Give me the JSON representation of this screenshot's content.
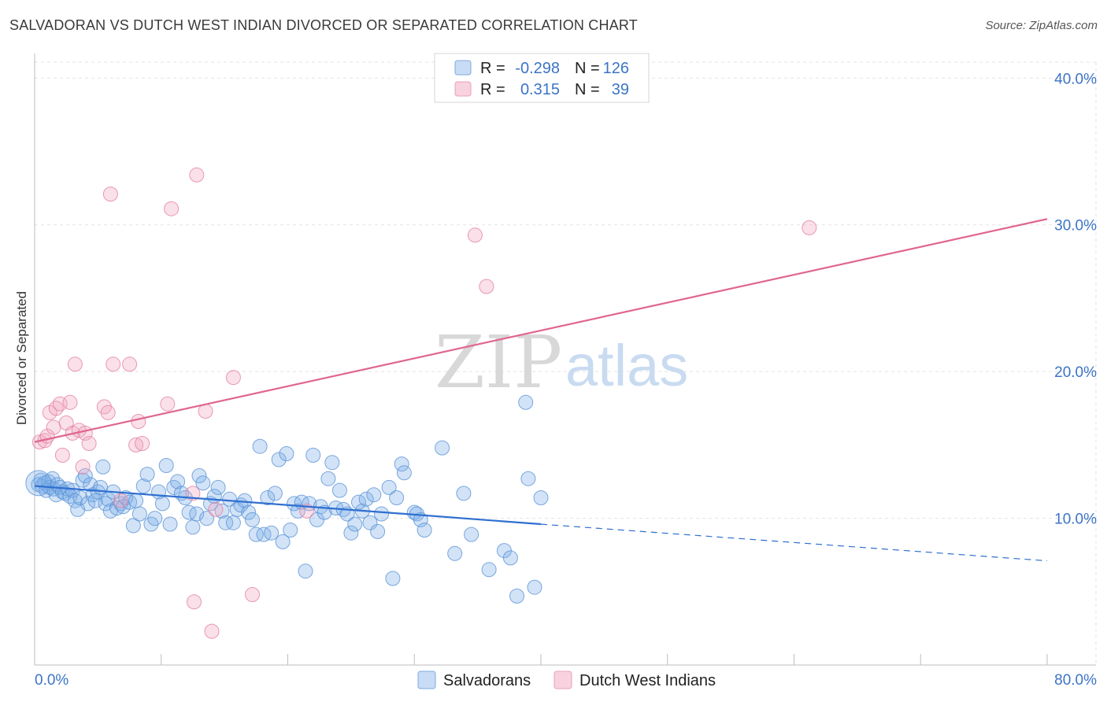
{
  "header": {
    "title": "SALVADORAN VS DUTCH WEST INDIAN DIVORCED OR SEPARATED CORRELATION CHART",
    "source": "Source: ZipAtlas.com"
  },
  "watermark": {
    "zip": "ZIP",
    "atlas": "atlas"
  },
  "stats_legend": {
    "rows": [
      {
        "r_label": "R =",
        "r_value": "-0.298",
        "n_label": "N =",
        "n_value": "126",
        "color": "#7fb0e8"
      },
      {
        "r_label": "R =",
        "r_value": "0.315",
        "n_label": "N =",
        "n_value": "39",
        "color": "#f2a6bf"
      }
    ]
  },
  "chart_data": {
    "type": "scatter",
    "title": "SALVADORAN VS DUTCH WEST INDIAN DIVORCED OR SEPARATED CORRELATION CHART",
    "xlabel": "",
    "ylabel": "Divorced or Separated",
    "xlim": [
      0,
      80
    ],
    "ylim": [
      0,
      42
    ],
    "x_tick_labels": [
      "0.0%",
      "80.0%"
    ],
    "y_ticks": [
      10,
      20,
      30,
      40
    ],
    "y_tick_labels": [
      "10.0%",
      "20.0%",
      "30.0%",
      "40.0%"
    ],
    "grid": true,
    "legend_position": "bottom",
    "series": [
      {
        "name": "Salvadorans",
        "color": "#7fb0e8",
        "stroke": "#5b93d6",
        "r": -0.298,
        "n": 126,
        "trend": {
          "x": [
            0,
            40
          ],
          "y": [
            12.2,
            9.6
          ],
          "dashed_to": [
            80,
            7.1
          ],
          "color": "#2f6fd0"
        },
        "points": [
          [
            0.3,
            12.3
          ],
          [
            0.5,
            12.6
          ],
          [
            0.6,
            12.2
          ],
          [
            0.8,
            12.4
          ],
          [
            0.9,
            11.9
          ],
          [
            1.1,
            12.5
          ],
          [
            1.2,
            12.1
          ],
          [
            1.4,
            12.7
          ],
          [
            1.5,
            12.0
          ],
          [
            1.7,
            11.6
          ],
          [
            1.8,
            12.3
          ],
          [
            2.0,
            12.1
          ],
          [
            2.2,
            11.8
          ],
          [
            2.4,
            11.7
          ],
          [
            2.6,
            12.0
          ],
          [
            2.8,
            11.5
          ],
          [
            3.0,
            11.9
          ],
          [
            3.2,
            11.2
          ],
          [
            3.4,
            10.6
          ],
          [
            3.6,
            11.4
          ],
          [
            3.8,
            12.6
          ],
          [
            4.0,
            12.9
          ],
          [
            4.2,
            11.0
          ],
          [
            4.4,
            12.3
          ],
          [
            4.6,
            11.6
          ],
          [
            4.8,
            11.2
          ],
          [
            5.0,
            11.8
          ],
          [
            5.2,
            12.1
          ],
          [
            5.4,
            13.5
          ],
          [
            5.6,
            11.0
          ],
          [
            5.8,
            11.3
          ],
          [
            6.0,
            10.5
          ],
          [
            6.2,
            11.8
          ],
          [
            6.5,
            10.7
          ],
          [
            6.8,
            11.0
          ],
          [
            7.0,
            10.8
          ],
          [
            7.2,
            11.4
          ],
          [
            7.5,
            11.1
          ],
          [
            7.8,
            9.5
          ],
          [
            8.0,
            11.2
          ],
          [
            8.3,
            10.3
          ],
          [
            8.6,
            12.2
          ],
          [
            8.9,
            13.0
          ],
          [
            9.2,
            9.6
          ],
          [
            9.5,
            10.0
          ],
          [
            9.8,
            11.8
          ],
          [
            10.1,
            11.0
          ],
          [
            10.4,
            13.6
          ],
          [
            10.7,
            9.6
          ],
          [
            11.0,
            12.1
          ],
          [
            11.3,
            12.5
          ],
          [
            11.6,
            11.7
          ],
          [
            11.9,
            11.4
          ],
          [
            12.2,
            10.4
          ],
          [
            12.5,
            9.4
          ],
          [
            12.8,
            10.3
          ],
          [
            13.0,
            12.9
          ],
          [
            13.3,
            12.4
          ],
          [
            13.6,
            10.0
          ],
          [
            13.9,
            11.0
          ],
          [
            14.2,
            11.5
          ],
          [
            14.5,
            12.1
          ],
          [
            14.8,
            10.5
          ],
          [
            15.1,
            9.7
          ],
          [
            15.4,
            11.3
          ],
          [
            15.7,
            9.7
          ],
          [
            16.0,
            10.6
          ],
          [
            16.3,
            10.9
          ],
          [
            16.6,
            11.2
          ],
          [
            16.9,
            10.4
          ],
          [
            17.2,
            9.9
          ],
          [
            17.5,
            8.9
          ],
          [
            17.8,
            14.9
          ],
          [
            18.1,
            8.9
          ],
          [
            18.4,
            11.4
          ],
          [
            18.7,
            9.0
          ],
          [
            19.0,
            11.7
          ],
          [
            19.3,
            14.0
          ],
          [
            19.6,
            8.4
          ],
          [
            19.9,
            14.4
          ],
          [
            20.2,
            9.2
          ],
          [
            20.5,
            11.0
          ],
          [
            20.8,
            10.5
          ],
          [
            21.1,
            11.1
          ],
          [
            21.4,
            6.4
          ],
          [
            21.7,
            11.0
          ],
          [
            22.0,
            14.3
          ],
          [
            22.3,
            9.9
          ],
          [
            22.6,
            10.8
          ],
          [
            22.9,
            10.4
          ],
          [
            23.2,
            12.7
          ],
          [
            23.5,
            13.8
          ],
          [
            23.8,
            10.7
          ],
          [
            24.1,
            11.9
          ],
          [
            24.4,
            10.6
          ],
          [
            24.7,
            10.3
          ],
          [
            25.0,
            9.0
          ],
          [
            25.3,
            9.6
          ],
          [
            25.6,
            11.1
          ],
          [
            25.9,
            10.5
          ],
          [
            26.2,
            11.3
          ],
          [
            26.5,
            9.7
          ],
          [
            26.8,
            11.6
          ],
          [
            27.1,
            9.1
          ],
          [
            27.4,
            10.3
          ],
          [
            28.0,
            12.1
          ],
          [
            28.3,
            5.9
          ],
          [
            28.6,
            11.4
          ],
          [
            29.0,
            13.7
          ],
          [
            29.2,
            13.1
          ],
          [
            30.0,
            10.4
          ],
          [
            30.2,
            10.3
          ],
          [
            30.5,
            9.9
          ],
          [
            30.8,
            9.2
          ],
          [
            32.2,
            14.8
          ],
          [
            33.2,
            7.6
          ],
          [
            33.9,
            11.7
          ],
          [
            34.5,
            8.9
          ],
          [
            35.9,
            6.5
          ],
          [
            37.1,
            7.8
          ],
          [
            37.6,
            7.3
          ],
          [
            38.1,
            4.7
          ],
          [
            39.5,
            5.3
          ],
          [
            40.0,
            11.4
          ],
          [
            38.8,
            17.9
          ],
          [
            39.0,
            12.7
          ]
        ]
      },
      {
        "name": "Dutch West Indians",
        "color": "#f2a6bf",
        "stroke": "#e381a2",
        "r": 0.315,
        "n": 39,
        "trend": {
          "x": [
            0,
            80
          ],
          "y": [
            15.2,
            30.4
          ],
          "color": "#e0668f"
        },
        "points": [
          [
            0.4,
            15.2
          ],
          [
            0.8,
            15.3
          ],
          [
            1.0,
            15.6
          ],
          [
            1.2,
            17.2
          ],
          [
            1.5,
            16.2
          ],
          [
            1.7,
            17.5
          ],
          [
            2.0,
            17.8
          ],
          [
            2.2,
            14.3
          ],
          [
            2.5,
            16.5
          ],
          [
            2.8,
            17.9
          ],
          [
            3.0,
            15.8
          ],
          [
            3.2,
            20.5
          ],
          [
            3.5,
            16.0
          ],
          [
            3.8,
            13.5
          ],
          [
            4.0,
            15.8
          ],
          [
            4.3,
            15.1
          ],
          [
            5.5,
            17.6
          ],
          [
            5.8,
            17.2
          ],
          [
            6.0,
            32.1
          ],
          [
            6.2,
            20.5
          ],
          [
            6.8,
            11.2
          ],
          [
            7.5,
            20.5
          ],
          [
            8.0,
            15.0
          ],
          [
            8.2,
            16.6
          ],
          [
            8.5,
            15.1
          ],
          [
            10.5,
            17.8
          ],
          [
            10.8,
            31.1
          ],
          [
            12.5,
            11.7
          ],
          [
            12.8,
            33.4
          ],
          [
            12.6,
            4.3
          ],
          [
            13.5,
            17.3
          ],
          [
            14.0,
            2.3
          ],
          [
            14.3,
            10.6
          ],
          [
            15.7,
            19.6
          ],
          [
            17.2,
            4.8
          ],
          [
            21.5,
            10.5
          ],
          [
            34.8,
            29.3
          ],
          [
            35.7,
            25.8
          ],
          [
            61.2,
            29.8
          ]
        ]
      }
    ]
  }
}
